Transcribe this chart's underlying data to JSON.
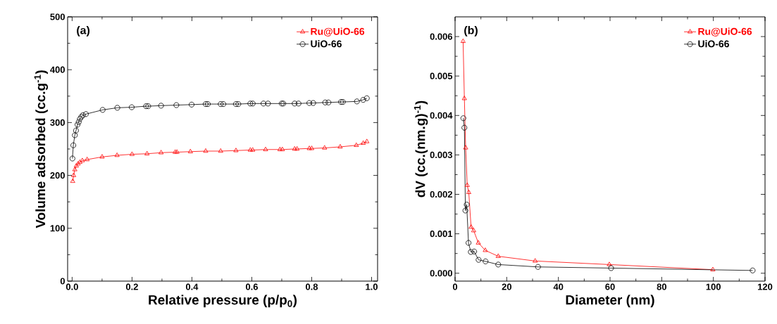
{
  "chart_data": [
    {
      "type": "line",
      "xlabel": "Relative pressure (p/p$_{0}$)",
      "ylabel": "Volume adsorbed (cc.g$^{-1}$)",
      "annotations": [
        "(a)"
      ],
      "xlim": [
        -0.015,
        1.02
      ],
      "ylim": [
        0,
        500
      ],
      "xticks": [
        {
          "value": 0,
          "label": "0.0"
        },
        {
          "value": 0.2,
          "label": "0.2"
        },
        {
          "value": 0.4,
          "label": "0.4"
        },
        {
          "value": 0.6,
          "label": "0.6"
        },
        {
          "value": 0.8,
          "label": "0.8"
        },
        {
          "value": 1,
          "label": "1.0"
        }
      ],
      "yticks": [
        0,
        100,
        200,
        300,
        400,
        500
      ],
      "legend": "top right",
      "series": [
        {
          "name": "Ru@UiO-66",
          "color": "#ff0000",
          "marker": "triangle",
          "x": [
            0.002,
            0.005,
            0.009,
            0.014,
            0.02,
            0.026,
            0.034,
            0.05,
            0.1,
            0.15,
            0.2,
            0.25,
            0.297,
            0.344,
            0.35,
            0.395,
            0.446,
            0.496,
            0.547,
            0.595,
            0.603,
            0.646,
            0.694,
            0.702,
            0.743,
            0.751,
            0.792,
            0.8,
            0.843,
            0.895,
            0.949,
            0.972,
            0.984
          ],
          "values": [
            189,
            200,
            211,
            218,
            222,
            225,
            228,
            230,
            235,
            238,
            240,
            241,
            243,
            244,
            244,
            245,
            246,
            246,
            247,
            248,
            248,
            249,
            249,
            249,
            250,
            250,
            251,
            251,
            252,
            254,
            257,
            261,
            264
          ]
        },
        {
          "name": "UiO-66",
          "color": "#000000",
          "marker": "circle",
          "x": [
            0.001,
            0.004,
            0.009,
            0.013,
            0.018,
            0.022,
            0.026,
            0.031,
            0.036,
            0.046,
            0.102,
            0.151,
            0.199,
            0.247,
            0.254,
            0.297,
            0.348,
            0.399,
            0.446,
            0.453,
            0.496,
            0.505,
            0.547,
            0.555,
            0.595,
            0.603,
            0.639,
            0.654,
            0.7,
            0.705,
            0.743,
            0.756,
            0.792,
            0.805,
            0.845,
            0.856,
            0.898,
            0.904,
            0.951,
            0.972,
            0.984
          ],
          "values": [
            232,
            257,
            276,
            285,
            296,
            301,
            307,
            311,
            314,
            316,
            324,
            328,
            329,
            331,
            331,
            332,
            333,
            334,
            335,
            335,
            335,
            335,
            335,
            335,
            336,
            336,
            336,
            336,
            336,
            336,
            336,
            336,
            337,
            337,
            338,
            338,
            339,
            339,
            340,
            343,
            346
          ]
        }
      ]
    },
    {
      "type": "line",
      "xlabel": "Diameter (nm)",
      "ylabel": "dV (cc.(nm.g)$^{-1}$)",
      "annotations": [
        "(b)"
      ],
      "xlim": [
        0,
        120
      ],
      "ylim": [
        -0.0002,
        0.0065
      ],
      "xticks": [
        0,
        20,
        40,
        60,
        80,
        100,
        120
      ],
      "yticks": [
        {
          "value": 0,
          "label": "0.000"
        },
        {
          "value": 0.001,
          "label": "0.001"
        },
        {
          "value": 0.002,
          "label": "0.002"
        },
        {
          "value": 0.003,
          "label": "0.003"
        },
        {
          "value": 0.004,
          "label": "0.004"
        },
        {
          "value": 0.005,
          "label": "0.005"
        },
        {
          "value": 0.006,
          "label": "0.006"
        }
      ],
      "legend": "top right",
      "series": [
        {
          "name": "Ru@UiO-66",
          "color": "#ff0000",
          "marker": "triangle",
          "x": [
            3.1,
            3.6,
            4.1,
            4.7,
            5.3,
            6.2,
            7.2,
            9.0,
            11.7,
            16.7,
            31,
            59.7,
            99.8
          ],
          "values": [
            0.00588,
            0.00443,
            0.00318,
            0.00223,
            0.00205,
            0.00117,
            0.00108,
            0.00077,
            0.00058,
            0.00043,
            0.00031,
            0.00022,
            9e-05
          ]
        },
        {
          "name": "UiO-66",
          "color": "#000000",
          "marker": "circle",
          "x": [
            3.2,
            3.6,
            4.0,
            4.5,
            5.2,
            6.1,
            7.4,
            9.1,
            11.8,
            16.7,
            32.1,
            60.4,
            115.2
          ],
          "values": [
            0.00393,
            0.00369,
            0.00159,
            0.00174,
            0.00077,
            0.00054,
            0.00055,
            0.00034,
            0.0003,
            0.00022,
            0.00016,
            0.00013,
            7e-05
          ]
        }
      ]
    }
  ]
}
